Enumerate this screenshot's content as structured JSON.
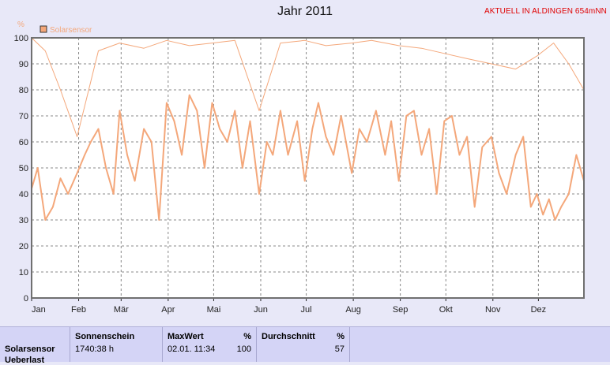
{
  "page": {
    "title": "Jahr 2011",
    "brand": "AKTUELL IN ALDINGEN 654mNN"
  },
  "colors": {
    "series": "#f4a77a",
    "background": "#e8e8f8",
    "plot_background": "#ffffff",
    "brand": "#e00000"
  },
  "chart_data": {
    "type": "line",
    "title": "Jahr 2011",
    "ylabel": "%",
    "ylim": [
      0,
      100
    ],
    "y_ticks": [
      0,
      10,
      20,
      30,
      40,
      50,
      60,
      70,
      80,
      90,
      100
    ],
    "x_ticks": [
      "Jan",
      "Feb",
      "Mär",
      "Apr",
      "Mai",
      "Jun",
      "Jul",
      "Aug",
      "Sep",
      "Okt",
      "Nov",
      "Dez"
    ],
    "grid": true,
    "legend": "top-left",
    "x_unit": "day of year",
    "series": [
      {
        "name": "Solarsensor",
        "style": "thin",
        "x": [
          1,
          10,
          20,
          31,
          45,
          59,
          75,
          90,
          105,
          120,
          135,
          151,
          165,
          181,
          195,
          212,
          225,
          243,
          258,
          273,
          288,
          304,
          320,
          334,
          345,
          355,
          365
        ],
        "values": [
          100,
          95,
          80,
          62,
          95,
          98,
          96,
          99,
          97,
          98,
          99,
          72,
          98,
          99,
          97,
          98,
          99,
          97,
          96,
          94,
          92,
          90,
          88,
          93,
          98,
          90,
          80
        ]
      },
      {
        "name": "",
        "style": "thick",
        "x": [
          1,
          5,
          10,
          15,
          20,
          25,
          31,
          36,
          40,
          45,
          50,
          55,
          59,
          64,
          69,
          75,
          80,
          85,
          90,
          95,
          100,
          105,
          110,
          115,
          120,
          125,
          130,
          135,
          140,
          145,
          151,
          156,
          160,
          165,
          170,
          176,
          181,
          186,
          190,
          195,
          200,
          205,
          212,
          217,
          222,
          228,
          234,
          238,
          243,
          248,
          253,
          258,
          263,
          268,
          273,
          278,
          283,
          288,
          293,
          298,
          304,
          309,
          314,
          320,
          325,
          330,
          334,
          338,
          342,
          346,
          350,
          355,
          360,
          365
        ],
        "values": [
          42,
          50,
          30,
          35,
          46,
          40,
          48,
          55,
          60,
          65,
          50,
          40,
          72,
          55,
          45,
          65,
          60,
          30,
          75,
          68,
          55,
          78,
          72,
          50,
          75,
          65,
          60,
          72,
          50,
          68,
          40,
          60,
          55,
          72,
          55,
          68,
          45,
          65,
          75,
          62,
          55,
          70,
          48,
          65,
          60,
          72,
          55,
          68,
          45,
          70,
          72,
          55,
          65,
          40,
          68,
          70,
          55,
          62,
          35,
          58,
          62,
          48,
          40,
          55,
          62,
          35,
          40,
          32,
          38,
          30,
          35,
          40,
          55,
          45
        ]
      }
    ]
  },
  "stats": {
    "label_col": {
      "line1": "Solarsensor",
      "line2": "Ueberlast"
    },
    "sonnenschein": {
      "header": "Sonnenschein",
      "value": "1740:38 h"
    },
    "maxwert": {
      "header": "MaxWert",
      "unit": "%",
      "date": "02.01.  11:34",
      "value": "100"
    },
    "durchschnitt": {
      "header": "Durchschnitt",
      "unit": "%",
      "value": "57"
    }
  }
}
